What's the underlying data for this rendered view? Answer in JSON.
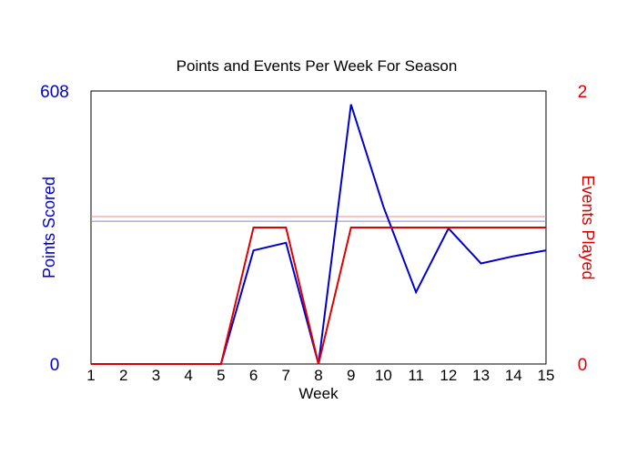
{
  "chart_data": {
    "type": "line",
    "title": "Points and Events Per Week For Season",
    "xlabel": "Week",
    "x": [
      1,
      2,
      3,
      4,
      5,
      6,
      7,
      8,
      9,
      10,
      11,
      12,
      13,
      14,
      15
    ],
    "xlim": [
      1,
      15
    ],
    "grid": false,
    "legend": "none",
    "left_axis": {
      "label": "Points Scored",
      "color": "#0000cc",
      "range": [
        0,
        608
      ],
      "tick_labels": [
        "0",
        "608"
      ]
    },
    "right_axis": {
      "label": "Events Played",
      "color": "#dd0000",
      "range": [
        0,
        2
      ],
      "tick_labels": [
        "0",
        "2"
      ]
    },
    "series": [
      {
        "axis": "left",
        "color": "#0000cc",
        "values": [
          0,
          0,
          0,
          0,
          0,
          253,
          270,
          0,
          578,
          350,
          160,
          302,
          224,
          240,
          253
        ]
      },
      {
        "axis": "right",
        "color": "#dd0000",
        "values": [
          0,
          0,
          0,
          0,
          0,
          1,
          1,
          0,
          1,
          1,
          1,
          1,
          1,
          1,
          1
        ]
      }
    ],
    "reference_lines": [
      {
        "axis": "left",
        "color": "#8888dd",
        "value": 318
      },
      {
        "axis": "right",
        "color": "#ee8888",
        "value": 1.08
      }
    ]
  }
}
